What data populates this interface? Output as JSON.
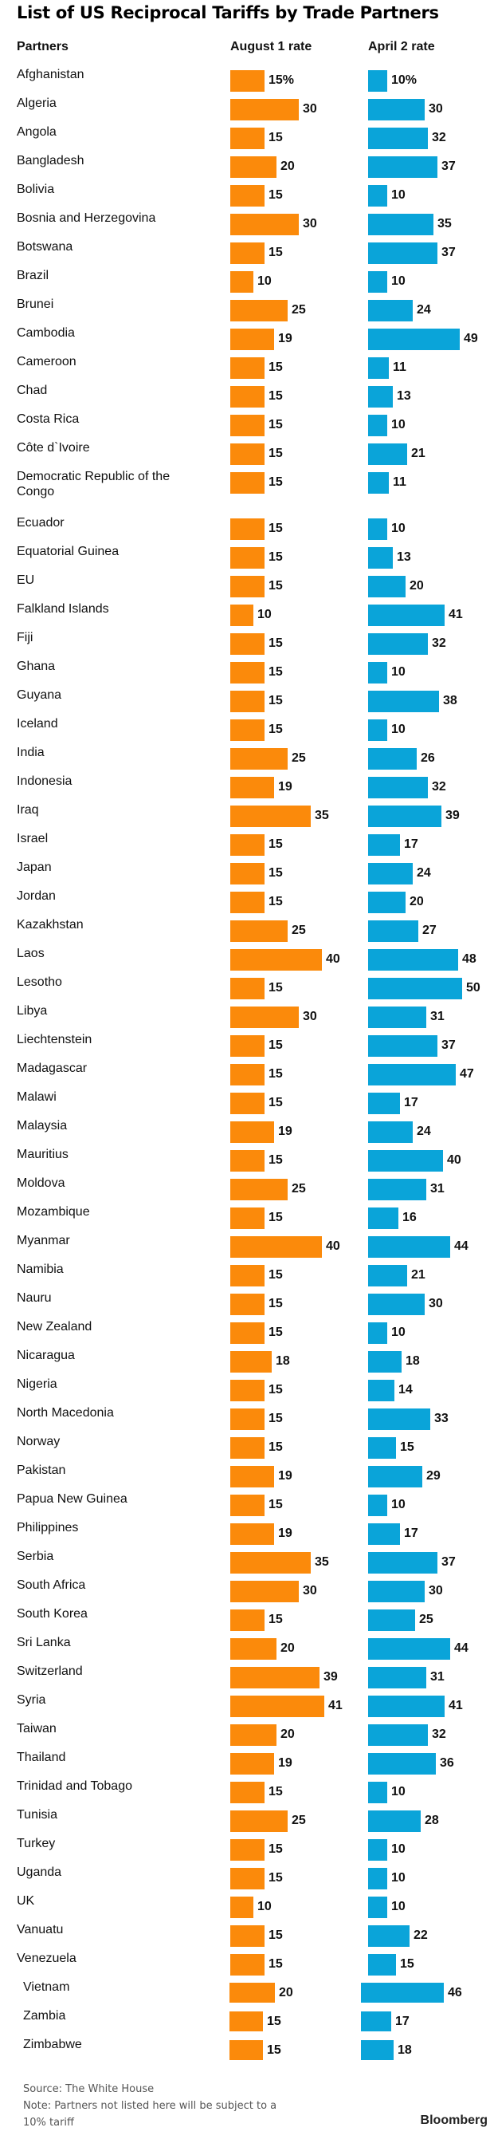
{
  "chart_data": {
    "type": "bar",
    "orientation": "horizontal",
    "title": "List of US Reciprocal Tariffs by Trade Partners",
    "headers": {
      "partners": "Partners",
      "aug": "August 1 rate",
      "apr": "April 2 rate"
    },
    "unit": "%",
    "colors": {
      "aug": "#fb8a0b",
      "apr": "#0aa4d9"
    },
    "categories": [
      "Afghanistan",
      "Algeria",
      "Angola",
      "Bangladesh",
      "Bolivia",
      "Bosnia and Herzegovina",
      "Botswana",
      "Brazil",
      "Brunei",
      "Cambodia",
      "Cameroon",
      "Chad",
      "Costa Rica",
      "Côte d`Ivoire",
      "Democratic Republic of the Congo",
      "Ecuador",
      "Equatorial Guinea",
      "EU",
      "Falkland Islands",
      "Fiji",
      "Ghana",
      "Guyana",
      "Iceland",
      "India",
      "Indonesia",
      "Iraq",
      "Israel",
      "Japan",
      "Jordan",
      "Kazakhstan",
      "Laos",
      "Lesotho",
      "Libya",
      "Liechtenstein",
      "Madagascar",
      "Malawi",
      "Malaysia",
      "Mauritius",
      "Moldova",
      "Mozambique",
      "Myanmar",
      "Namibia",
      "Nauru",
      "New Zealand",
      "Nicaragua",
      "Nigeria",
      "North Macedonia",
      "Norway",
      "Pakistan",
      "Papua New Guinea",
      "Philippines",
      "Serbia",
      "South Africa",
      "South Korea",
      "Sri Lanka",
      "Switzerland",
      "Syria",
      "Taiwan",
      "Thailand",
      "Trinidad and Tobago",
      "Tunisia",
      "Turkey",
      "Uganda",
      "UK",
      "Vanuatu",
      "Venezuela",
      "Vietnam",
      "Zambia",
      "Zimbabwe"
    ],
    "series": [
      {
        "name": "August 1 rate",
        "values": [
          15,
          30,
          15,
          20,
          15,
          30,
          15,
          10,
          25,
          19,
          15,
          15,
          15,
          15,
          15,
          15,
          15,
          15,
          10,
          15,
          15,
          15,
          15,
          25,
          19,
          35,
          15,
          15,
          15,
          25,
          40,
          15,
          30,
          15,
          15,
          15,
          19,
          15,
          25,
          15,
          40,
          15,
          15,
          15,
          18,
          15,
          15,
          15,
          19,
          15,
          19,
          35,
          30,
          15,
          20,
          39,
          41,
          20,
          19,
          15,
          25,
          15,
          15,
          10,
          15,
          15,
          20,
          15,
          15
        ]
      },
      {
        "name": "April 2 rate",
        "values": [
          10,
          30,
          32,
          37,
          10,
          35,
          37,
          10,
          24,
          49,
          11,
          13,
          10,
          21,
          11,
          10,
          13,
          20,
          41,
          32,
          10,
          38,
          10,
          26,
          32,
          39,
          17,
          24,
          20,
          27,
          48,
          50,
          31,
          37,
          47,
          17,
          24,
          40,
          31,
          16,
          44,
          21,
          30,
          10,
          18,
          14,
          33,
          15,
          29,
          10,
          17,
          37,
          30,
          25,
          44,
          31,
          41,
          32,
          36,
          10,
          28,
          10,
          10,
          10,
          22,
          15,
          46,
          17,
          18
        ]
      }
    ]
  },
  "footer": {
    "source": "Source: The White House",
    "note1": "Note: Partners not listed here will be subject to a",
    "note2": "10% tariff",
    "brand": "Bloomberg"
  }
}
